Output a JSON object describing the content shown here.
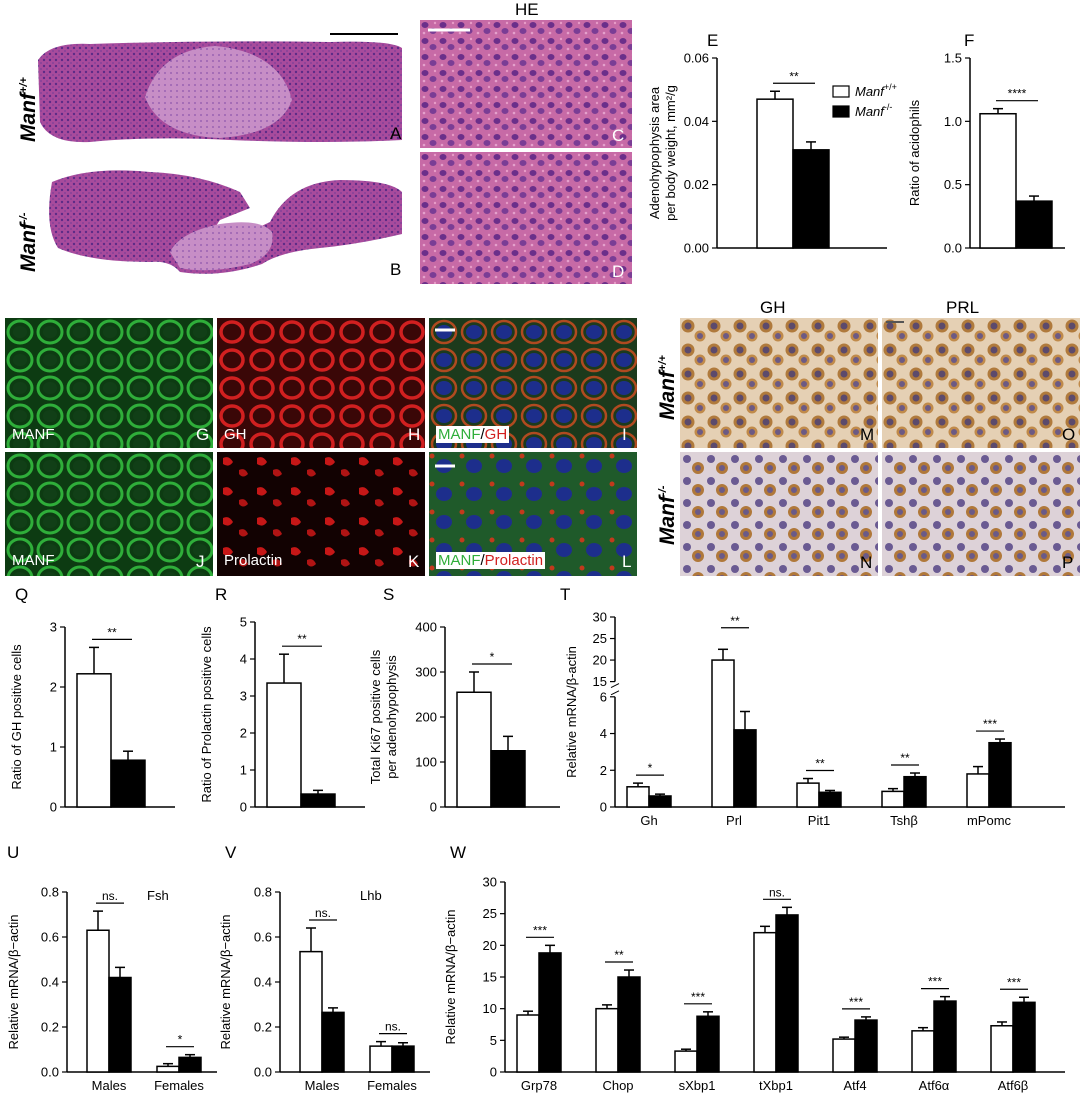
{
  "figure": {
    "genotypes": {
      "wt": "Manf",
      "wt_sup": "+/+",
      "ko": "Manf",
      "ko_sup": "-/-"
    },
    "he_title": "HE",
    "ihc_titles": {
      "gh": "GH",
      "prl": "PRL"
    },
    "panel_letters": {
      "A": "A",
      "B": "B",
      "C": "C",
      "D": "D",
      "E": "E",
      "F": "F",
      "G": "G",
      "H": "H",
      "I": "I",
      "J": "J",
      "K": "K",
      "L": "L",
      "M": "M",
      "N": "N",
      "O": "O",
      "P": "P",
      "Q": "Q",
      "R": "R",
      "S": "S",
      "T": "T",
      "U": "U",
      "V": "V",
      "W": "W"
    },
    "fluor_labels": {
      "G": "MANF",
      "H": "GH",
      "I_a": "MANF",
      "I_sep": "/",
      "I_b": "GH",
      "J": "MANF",
      "K": "Prolactin",
      "L_a": "MANF",
      "L_sep": "/",
      "L_b": "Prolactin"
    },
    "legend": {
      "wt": "Manf",
      "wt_sup": "+/+",
      "ko": "Manf",
      "ko_sup": "-/-"
    },
    "colors": {
      "he_pink": "#c76aa6",
      "he_purple": "#7a3d95",
      "green": "#2fae3a",
      "red": "#d12020",
      "blue": "#1d2e8c",
      "ihc_brown": "#b07a3c",
      "ihc_bg": "#e8d5bd"
    }
  },
  "chart_data": [
    {
      "id": "E",
      "type": "bar",
      "ylabel_lines": [
        "Adenohypophysis area",
        "per body weight, mm²/g"
      ],
      "ylim": [
        0,
        0.06
      ],
      "yticks": [
        0.0,
        0.02,
        0.04,
        0.06
      ],
      "ytick_labels": [
        "0.00",
        "0.02",
        "0.04",
        "0.06"
      ],
      "groups": [
        {
          "label": "",
          "values": [
            0.047,
            0.031
          ],
          "errors": [
            0.0025,
            0.0025
          ]
        }
      ],
      "series": [
        {
          "name": "Manf+/+"
        },
        {
          "name": "Manf-/-"
        }
      ],
      "sig": [
        {
          "group": 0,
          "text": "**"
        }
      ]
    },
    {
      "id": "F",
      "type": "bar",
      "ylabel_lines": [
        "Ratio of acidophils"
      ],
      "ylim": [
        0,
        1.5
      ],
      "yticks": [
        0.0,
        0.5,
        1.0,
        1.5
      ],
      "ytick_labels": [
        "0.0",
        "0.5",
        "1.0",
        "1.5"
      ],
      "groups": [
        {
          "label": "",
          "values": [
            1.06,
            0.37
          ],
          "errors": [
            0.04,
            0.04
          ]
        }
      ],
      "sig": [
        {
          "group": 0,
          "text": "****"
        }
      ]
    },
    {
      "id": "Q",
      "type": "bar",
      "ylabel_lines": [
        "Ratio of GH positive cells"
      ],
      "ylim": [
        0,
        3
      ],
      "yticks": [
        0,
        1,
        2,
        3
      ],
      "ytick_labels": [
        "0",
        "1",
        "2",
        "3"
      ],
      "groups": [
        {
          "label": "",
          "values": [
            2.22,
            0.78
          ],
          "errors": [
            0.44,
            0.15
          ]
        }
      ],
      "sig": [
        {
          "group": 0,
          "text": "**"
        }
      ]
    },
    {
      "id": "R",
      "type": "bar",
      "ylabel_lines": [
        "Ratio of Prolactin positive cells"
      ],
      "ylim": [
        0,
        5
      ],
      "yticks": [
        0,
        1,
        2,
        3,
        4,
        5
      ],
      "ytick_labels": [
        "0",
        "1",
        "2",
        "3",
        "4",
        "5"
      ],
      "groups": [
        {
          "label": "",
          "values": [
            3.35,
            0.35
          ],
          "errors": [
            0.78,
            0.1
          ]
        }
      ],
      "sig": [
        {
          "group": 0,
          "text": "**"
        }
      ]
    },
    {
      "id": "S",
      "type": "bar",
      "ylabel_lines": [
        "Total Ki67 positive cells",
        "per adenohypophysis"
      ],
      "ylim": [
        0,
        400
      ],
      "yticks": [
        0,
        100,
        200,
        300,
        400
      ],
      "ytick_labels": [
        "0",
        "100",
        "200",
        "300",
        "400"
      ],
      "groups": [
        {
          "label": "",
          "values": [
            255,
            125
          ],
          "errors": [
            45,
            32
          ]
        }
      ],
      "sig": [
        {
          "group": 0,
          "text": "*"
        }
      ]
    },
    {
      "id": "T",
      "type": "bar",
      "broken_axis": true,
      "ylabel_lines": [
        "Relative mRNA/β-actin"
      ],
      "ylim": [
        0,
        30
      ],
      "yticks": [
        0,
        2,
        4,
        6,
        15,
        20,
        25,
        30
      ],
      "ytick_labels": [
        "0",
        "2",
        "4",
        "6",
        "15",
        "20",
        "25",
        "30"
      ],
      "groups": [
        {
          "label": "Gh",
          "values": [
            1.1,
            0.6
          ],
          "errors": [
            0.2,
            0.1
          ]
        },
        {
          "label": "Prl",
          "values": [
            20.0,
            4.2
          ],
          "errors": [
            2.5,
            1.0
          ]
        },
        {
          "label": "Pit1",
          "values": [
            1.3,
            0.8
          ],
          "errors": [
            0.25,
            0.1
          ]
        },
        {
          "label": "Tshβ",
          "values": [
            0.85,
            1.65
          ],
          "errors": [
            0.15,
            0.2
          ]
        },
        {
          "label": "mPomc",
          "values": [
            1.8,
            3.5
          ],
          "errors": [
            0.4,
            0.2
          ]
        }
      ],
      "sig": [
        {
          "group": 0,
          "text": "*"
        },
        {
          "group": 1,
          "text": "**"
        },
        {
          "group": 2,
          "text": "**"
        },
        {
          "group": 3,
          "text": "**"
        },
        {
          "group": 4,
          "text": "***"
        }
      ]
    },
    {
      "id": "U",
      "type": "bar",
      "title": "Fsh",
      "ylabel_lines": [
        "Relative mRNA/β−actin"
      ],
      "ylim": [
        0,
        0.8
      ],
      "yticks": [
        0.0,
        0.2,
        0.4,
        0.6,
        0.8
      ],
      "ytick_labels": [
        "0.0",
        "0.2",
        "0.4",
        "0.6",
        "0.8"
      ],
      "groups": [
        {
          "label": "Males",
          "values": [
            0.63,
            0.42
          ],
          "errors": [
            0.085,
            0.045
          ]
        },
        {
          "label": "Females",
          "values": [
            0.025,
            0.065
          ],
          "errors": [
            0.012,
            0.012
          ]
        }
      ],
      "sig": [
        {
          "group": 0,
          "text": "ns."
        },
        {
          "group": 1,
          "text": "*"
        }
      ]
    },
    {
      "id": "V",
      "type": "bar",
      "title": "Lhb",
      "ylabel_lines": [
        "Relative mRNA/β−actin"
      ],
      "ylim": [
        0,
        0.8
      ],
      "yticks": [
        0.0,
        0.2,
        0.4,
        0.6,
        0.8
      ],
      "ytick_labels": [
        "0.0",
        "0.2",
        "0.4",
        "0.6",
        "0.8"
      ],
      "groups": [
        {
          "label": "Males",
          "values": [
            0.535,
            0.265
          ],
          "errors": [
            0.105,
            0.02
          ]
        },
        {
          "label": "Females",
          "values": [
            0.115,
            0.115
          ],
          "errors": [
            0.02,
            0.015
          ]
        }
      ],
      "sig": [
        {
          "group": 0,
          "text": "ns."
        },
        {
          "group": 1,
          "text": "ns."
        }
      ]
    },
    {
      "id": "W",
      "type": "bar",
      "ylabel_lines": [
        "Relative mRNA/β−actin"
      ],
      "ylim": [
        0,
        30
      ],
      "yticks": [
        0,
        5,
        10,
        15,
        20,
        25,
        30
      ],
      "ytick_labels": [
        "0",
        "5",
        "10",
        "15",
        "20",
        "25",
        "30"
      ],
      "groups": [
        {
          "label": "Grp78",
          "values": [
            9.0,
            18.8
          ],
          "errors": [
            0.6,
            1.2
          ]
        },
        {
          "label": "Chop",
          "values": [
            10.0,
            15.0
          ],
          "errors": [
            0.6,
            1.1
          ]
        },
        {
          "label": "sXbp1",
          "values": [
            3.3,
            8.8
          ],
          "errors": [
            0.3,
            0.7
          ]
        },
        {
          "label": "tXbp1",
          "values": [
            22.0,
            24.8
          ],
          "errors": [
            1.0,
            1.2
          ]
        },
        {
          "label": "Atf4",
          "values": [
            5.2,
            8.2
          ],
          "errors": [
            0.3,
            0.5
          ]
        },
        {
          "label": "Atf6α",
          "values": [
            6.5,
            11.2
          ],
          "errors": [
            0.5,
            0.7
          ]
        },
        {
          "label": "Atf6β",
          "values": [
            7.3,
            11.0
          ],
          "errors": [
            0.6,
            0.8
          ]
        }
      ],
      "sig": [
        {
          "group": 0,
          "text": "***"
        },
        {
          "group": 1,
          "text": "**"
        },
        {
          "group": 2,
          "text": "***"
        },
        {
          "group": 3,
          "text": "ns."
        },
        {
          "group": 4,
          "text": "***"
        },
        {
          "group": 5,
          "text": "***"
        },
        {
          "group": 6,
          "text": "***"
        }
      ]
    }
  ]
}
